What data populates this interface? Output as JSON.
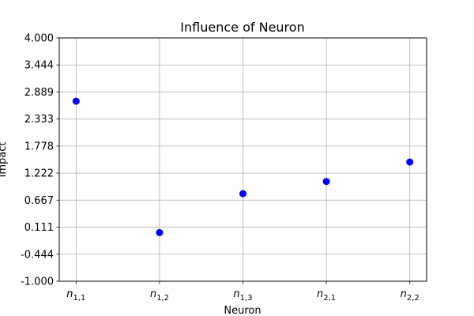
{
  "chart_data": {
    "type": "scatter",
    "title": "Influence of Neuron",
    "xlabel": "Neuron",
    "ylabel": "Impact",
    "ylim": [
      -1.0,
      4.0
    ],
    "y_ticks": [
      "-1.000",
      "-0.444",
      "0.111",
      "0.667",
      "1.222",
      "1.778",
      "2.333",
      "2.889",
      "3.444",
      "4.000"
    ],
    "grid": true,
    "categories": [
      {
        "base": "n",
        "sub": "1,1"
      },
      {
        "base": "n",
        "sub": "1,2"
      },
      {
        "base": "n",
        "sub": "1,3"
      },
      {
        "base": "n",
        "sub": "2,1"
      },
      {
        "base": "n",
        "sub": "2,2"
      }
    ],
    "values": [
      2.7,
      0.0,
      0.8,
      1.05,
      1.45
    ],
    "marker_color": "#0000ff"
  }
}
